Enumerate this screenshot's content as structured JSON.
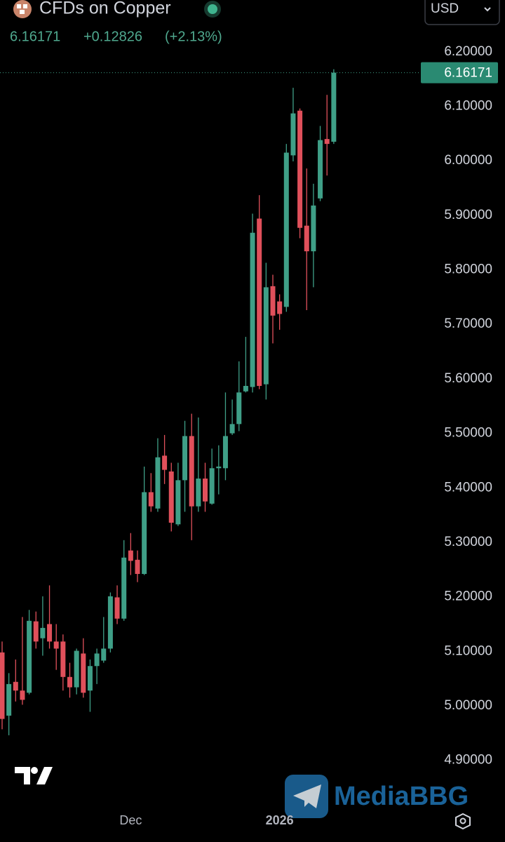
{
  "header": {
    "title": "CFDs on Copper",
    "price": "6.16171",
    "change": "+0.12826",
    "change_pct": "(+2.13%)",
    "currency": "USD"
  },
  "watermark": "MediaBBG",
  "chart_data": {
    "type": "candlestick",
    "categories": [
      null,
      null,
      null,
      null,
      null,
      null,
      null,
      null,
      null,
      null,
      null,
      null,
      null,
      null,
      null,
      null,
      null,
      null,
      null,
      "Dec",
      null,
      null,
      null,
      null,
      null,
      null,
      null,
      null,
      null,
      null,
      null,
      null,
      null,
      null,
      null,
      null,
      null,
      null,
      null,
      null,
      null,
      "2026",
      null,
      null,
      null,
      null,
      null,
      null,
      null,
      null
    ],
    "open": [
      5.098,
      4.982,
      5.044,
      5.028,
      5.024,
      5.155,
      5.124,
      5.15,
      5.118,
      5.118,
      5.053,
      5.034,
      5.096,
      5.028,
      5.073,
      5.083,
      5.105,
      5.199,
      5.16,
      5.285,
      5.268,
      5.242,
      5.392,
      5.362,
      5.459,
      5.43,
      5.333,
      5.414,
      5.495,
      5.366,
      5.417,
      5.371,
      5.436,
      5.436,
      5.5,
      5.517,
      5.577,
      5.585,
      5.894,
      5.59,
      5.77,
      5.742,
      5.732,
      6.01,
      6.092,
      5.881,
      5.834,
      5.931,
      6.04,
      6.035
    ],
    "high": [
      5.118,
      5.06,
      5.085,
      5.163,
      5.176,
      5.173,
      5.201,
      5.221,
      5.15,
      5.131,
      5.079,
      5.105,
      5.124,
      5.085,
      5.105,
      5.163,
      5.208,
      5.221,
      5.304,
      5.317,
      5.285,
      5.439,
      5.427,
      5.491,
      5.497,
      5.446,
      5.446,
      5.523,
      5.536,
      5.529,
      5.446,
      5.472,
      5.478,
      5.575,
      5.562,
      5.632,
      5.677,
      5.903,
      5.937,
      5.813,
      5.791,
      5.755,
      6.031,
      6.134,
      6.096,
      5.986,
      5.958,
      6.064,
      6.121,
      6.168
    ],
    "low": [
      4.957,
      4.946,
      5.008,
      5.002,
      5.021,
      5.105,
      5.092,
      5.105,
      5.066,
      5.028,
      5.015,
      5.021,
      5.015,
      4.989,
      5.04,
      5.079,
      5.098,
      5.15,
      5.156,
      5.24,
      5.227,
      5.24,
      5.356,
      5.356,
      5.407,
      5.32,
      5.33,
      5.356,
      5.304,
      5.356,
      5.356,
      5.369,
      5.388,
      5.414,
      5.497,
      5.504,
      5.575,
      5.575,
      5.581,
      5.562,
      5.665,
      5.69,
      5.723,
      5.999,
      5.858,
      5.726,
      5.768,
      5.926,
      5.973,
      6.031
    ],
    "close": [
      4.976,
      5.04,
      5.028,
      5.011,
      5.156,
      5.118,
      5.143,
      5.118,
      5.105,
      5.053,
      5.034,
      5.101,
      5.024,
      5.073,
      5.096,
      5.105,
      5.201,
      5.16,
      5.272,
      5.266,
      5.242,
      5.392,
      5.366,
      5.456,
      5.433,
      5.336,
      5.414,
      5.495,
      5.366,
      5.417,
      5.375,
      5.436,
      5.439,
      5.495,
      5.517,
      5.575,
      5.587,
      5.868,
      5.587,
      5.768,
      5.716,
      5.719,
      6.015,
      6.087,
      5.877,
      5.834,
      5.918,
      6.038,
      6.031,
      6.16171
    ],
    "up_color": "#3f9f87",
    "down_color": "#e0505b",
    "ylim": [
      4.83,
      6.25
    ],
    "yticks": [
      {
        "value": 6.2,
        "label": "6.20000"
      },
      {
        "value": 6.1,
        "label": "6.10000"
      },
      {
        "value": 6.0,
        "label": "6.00000"
      },
      {
        "value": 5.9,
        "label": "5.90000"
      },
      {
        "value": 5.8,
        "label": "5.80000"
      },
      {
        "value": 5.7,
        "label": "5.70000"
      },
      {
        "value": 5.6,
        "label": "5.60000"
      },
      {
        "value": 5.5,
        "label": "5.50000"
      },
      {
        "value": 5.4,
        "label": "5.40000"
      },
      {
        "value": 5.3,
        "label": "5.30000"
      },
      {
        "value": 5.2,
        "label": "5.20000"
      },
      {
        "value": 5.1,
        "label": "5.10000"
      },
      {
        "value": 5.0,
        "label": "5.00000"
      },
      {
        "value": 4.9,
        "label": "4.90000"
      }
    ],
    "last_price": {
      "value": 6.16171,
      "label": "6.16171"
    },
    "grid": false
  }
}
